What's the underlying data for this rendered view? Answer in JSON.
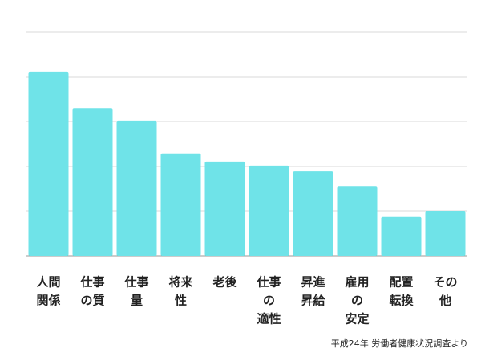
{
  "chart_data": {
    "type": "bar",
    "categories": [
      [
        "人間",
        "関係"
      ],
      [
        "仕事",
        "の質"
      ],
      [
        "仕事",
        "量"
      ],
      [
        "将来",
        "性"
      ],
      [
        "老後"
      ],
      [
        "仕事",
        "の",
        "適性"
      ],
      [
        "昇進",
        "昇給"
      ],
      [
        "雇用",
        "の",
        "安定"
      ],
      [
        "配置",
        "転換"
      ],
      [
        "その",
        "他"
      ]
    ],
    "values": [
      41.1,
      33.0,
      30.2,
      22.9,
      21.1,
      20.2,
      18.9,
      15.5,
      8.8,
      10.0
    ],
    "color": "#6fe3e8",
    "ylim": [
      0,
      50
    ],
    "yticks": [
      0,
      10,
      20,
      30,
      40,
      50
    ],
    "grid": true,
    "source": "平成24年 労働者健康状況調査より"
  }
}
